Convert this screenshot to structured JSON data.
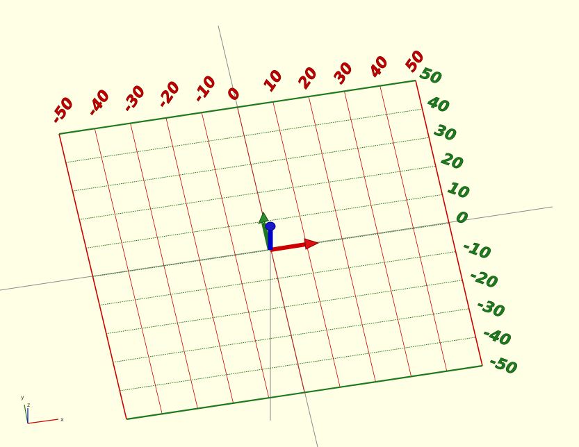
{
  "scene": {
    "background": "#ffffe5",
    "grid_range": [
      -50,
      50
    ],
    "grid_step": 10,
    "x_axis_color": "#cc0000",
    "y_axis_color": "#1f7a1f",
    "z_axis_color": "#0000cc"
  },
  "x_ticks": [
    "-50",
    "-40",
    "-30",
    "-20",
    "-10",
    "0",
    "10",
    "20",
    "30",
    "40",
    "50"
  ],
  "y_ticks": [
    "50",
    "40",
    "30",
    "20",
    "10",
    "0",
    "-10",
    "-20",
    "-30",
    "-40",
    "-50"
  ],
  "axes_indicator": {
    "x_label": "x",
    "y_label": "y",
    "z_label": "z"
  }
}
